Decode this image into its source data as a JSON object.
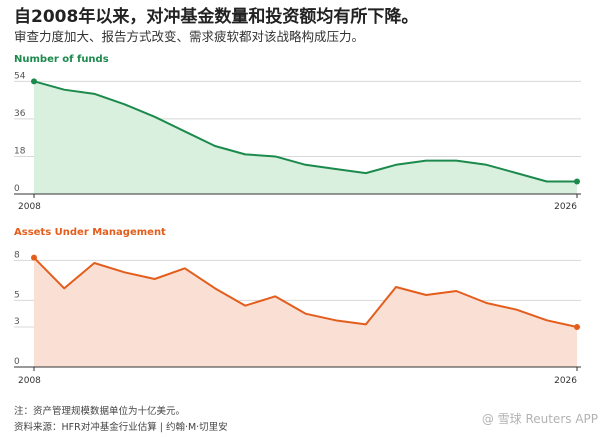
{
  "header": {
    "title": "自2008年以来，对冲基金数量和投资额均有所下降。",
    "subtitle": "审查力度加大、报告方式改变、需求疲软都对该战略构成压力。"
  },
  "chart_data": [
    {
      "type": "area",
      "title": "Number of funds",
      "x": [
        2008,
        2009,
        2010,
        2011,
        2012,
        2013,
        2014,
        2015,
        2016,
        2017,
        2018,
        2019,
        2020,
        2021,
        2022,
        2023,
        2024,
        2025,
        2026
      ],
      "values": [
        54,
        50,
        48,
        43,
        37,
        30,
        23,
        19,
        18,
        14,
        12,
        10,
        14,
        16,
        16,
        14,
        10,
        6,
        6
      ],
      "yticks": [
        0,
        18,
        36,
        54
      ],
      "ylim": [
        0,
        58
      ],
      "xtick_labels": [
        "2008",
        "2026"
      ],
      "color": "#1b8a4c",
      "fill": "#d9f0df"
    },
    {
      "type": "area",
      "title": "Assets Under Management",
      "x": [
        2008,
        2009,
        2010,
        2011,
        2012,
        2013,
        2014,
        2015,
        2016,
        2017,
        2018,
        2019,
        2020,
        2021,
        2022,
        2023,
        2024,
        2025,
        2026
      ],
      "values": [
        8.2,
        5.9,
        7.8,
        7.1,
        6.6,
        7.4,
        5.9,
        4.6,
        5.3,
        4.0,
        3.5,
        3.2,
        6.0,
        5.4,
        5.7,
        4.8,
        4.3,
        3.5,
        3.0
      ],
      "yticks": [
        0,
        3,
        5,
        8
      ],
      "ylim": [
        0,
        9
      ],
      "xtick_labels": [
        "2008",
        "2026"
      ],
      "color": "#e35d1c",
      "fill": "#fadfd4"
    }
  ],
  "footer": {
    "note": "注：资产管理规模数据单位为十亿美元。",
    "source": "资料来源：HFR对冲基金行业估算 | 约翰·M·切里安"
  },
  "watermark": "@ 雪球  Reuters  APP"
}
